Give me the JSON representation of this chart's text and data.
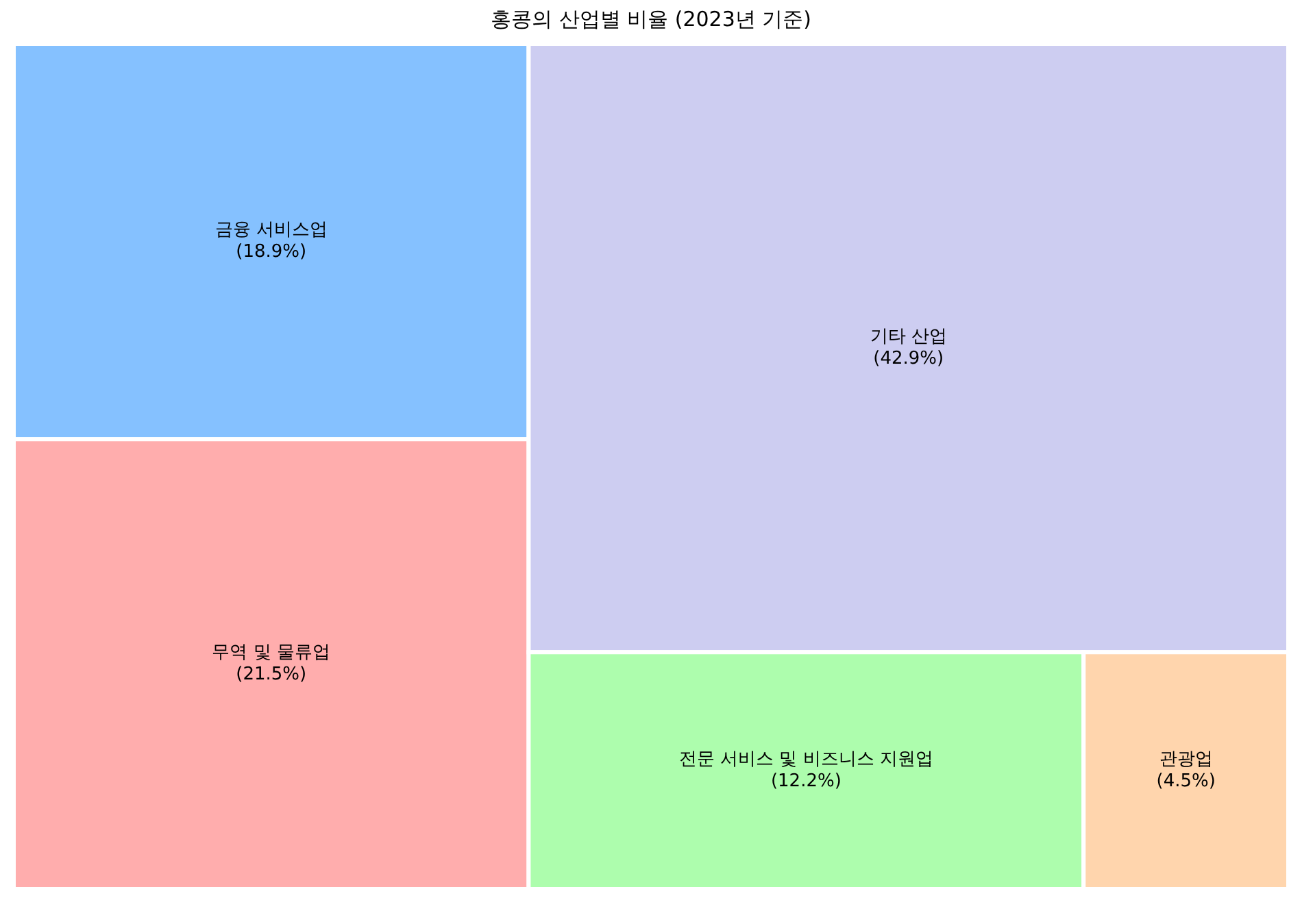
{
  "chart_data": {
    "type": "other",
    "title": "홍콩의 산업별 비율 (2023년 기준)",
    "categories": [
      "금융 서비스업",
      "무역 및 물류업",
      "기타 산업",
      "전문 서비스 및 비즈니스 지원업",
      "관광업"
    ],
    "values": [
      18.9,
      21.5,
      42.9,
      12.2,
      4.5
    ],
    "value_labels": [
      "(18.9%)",
      "(21.5%)",
      "(42.9%)",
      "(12.2%)",
      "(4.5%)"
    ],
    "colors": [
      "#85c1ff",
      "#ffadad",
      "#cdcdf1",
      "#adfdad",
      "#ffd5ad"
    ]
  }
}
